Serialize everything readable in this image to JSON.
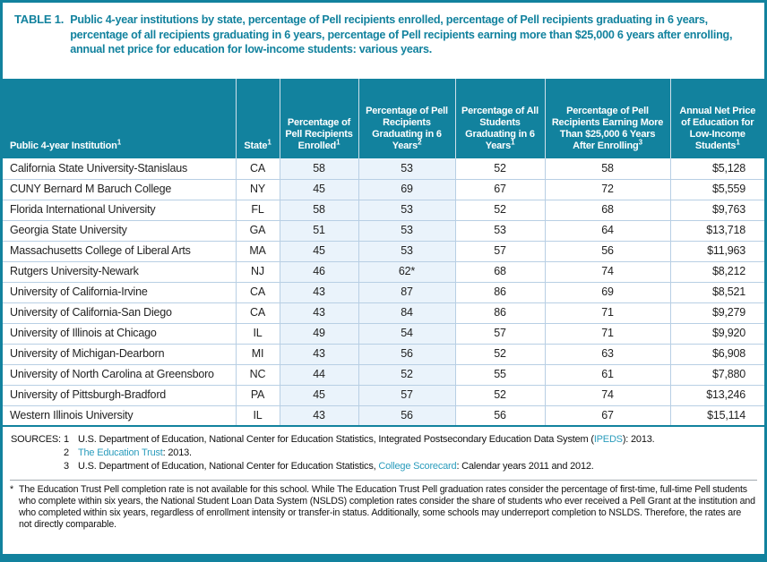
{
  "colors": {
    "accent_teal": "#12829e",
    "link_teal": "#2a9cbc",
    "column_tint": "#eaf3fb",
    "row_border": "#b8cfe4"
  },
  "title": {
    "label": "TABLE 1.",
    "text": "Public 4-year institutions by state, percentage of Pell recipients enrolled, percentage of Pell recipients graduating in 6 years, percentage of all recipients graduating in 6 years, percentage of Pell recipients earning more than $25,000 6 years after enrolling, annual net price for education for low-income students: various years."
  },
  "table": {
    "columns": [
      {
        "label": "Public 4-year Institution",
        "sup": "1"
      },
      {
        "label": "State",
        "sup": "1"
      },
      {
        "label": "Percentage of Pell Recipients Enrolled",
        "sup": "1"
      },
      {
        "label": "Percentage of Pell Recipients Graduating in 6 Years",
        "sup": "2"
      },
      {
        "label": "Percentage of All Students Graduating in 6 Years",
        "sup": "1"
      },
      {
        "label": "Percentage of Pell Recipients Earning More Than $25,000 6 Years After Enrolling",
        "sup": "3"
      },
      {
        "label": "Annual Net Price of Education for Low-Income Students",
        "sup": "1"
      }
    ],
    "rows": [
      [
        "California State University-Stanislaus",
        "CA",
        "58",
        "53",
        "52",
        "58",
        "$5,128"
      ],
      [
        "CUNY Bernard M Baruch College",
        "NY",
        "45",
        "69",
        "67",
        "72",
        "$5,559"
      ],
      [
        "Florida International University",
        "FL",
        "58",
        "53",
        "52",
        "68",
        "$9,763"
      ],
      [
        "Georgia State University",
        "GA",
        "51",
        "53",
        "53",
        "64",
        "$13,718"
      ],
      [
        "Massachusetts College of Liberal Arts",
        "MA",
        "45",
        "53",
        "57",
        "56",
        "$11,963"
      ],
      [
        "Rutgers University-Newark",
        "NJ",
        "46",
        "62*",
        "68",
        "74",
        "$8,212"
      ],
      [
        "University of California-Irvine",
        "CA",
        "43",
        "87",
        "86",
        "69",
        "$8,521"
      ],
      [
        "University of California-San Diego",
        "CA",
        "43",
        "84",
        "86",
        "71",
        "$9,279"
      ],
      [
        "University of Illinois at Chicago",
        "IL",
        "49",
        "54",
        "57",
        "71",
        "$9,920"
      ],
      [
        "University of Michigan-Dearborn",
        "MI",
        "43",
        "56",
        "52",
        "63",
        "$6,908"
      ],
      [
        "University of North Carolina at Greensboro",
        "NC",
        "44",
        "52",
        "55",
        "61",
        "$7,880"
      ],
      [
        "University of Pittsburgh-Bradford",
        "PA",
        "45",
        "57",
        "52",
        "74",
        "$13,246"
      ],
      [
        "Western Illinois University",
        "IL",
        "43",
        "56",
        "56",
        "67",
        "$15,114"
      ]
    ]
  },
  "sources": {
    "label": "SOURCES:",
    "items": [
      {
        "num": "1",
        "pre": "U.S. Department of Education, National Center for Education Statistics, Integrated Postsecondary Education Data System (",
        "link": "IPEDS",
        "post": "): 2013."
      },
      {
        "num": "2",
        "pre": "",
        "link": "The Education Trust",
        "post": ": 2013."
      },
      {
        "num": "3",
        "pre": "U.S. Department of Education, National Center for Education Statistics, ",
        "link": "College Scorecard",
        "post": ": Calendar years 2011 and 2012."
      }
    ]
  },
  "footnote": {
    "marker": "*",
    "text": "The Education Trust Pell completion rate is not available for this school. While The Education Trust Pell graduation rates consider the percentage of first-time, full-time Pell students who complete within six years, the National Student Loan Data System (NSLDS) completion rates consider the share of students who ever received a Pell Grant at the institution and who completed within six years, regardless of enrollment intensity or transfer-in status. Additionally, some schools may underreport completion to NSLDS. Therefore, the rates are not directly comparable."
  }
}
